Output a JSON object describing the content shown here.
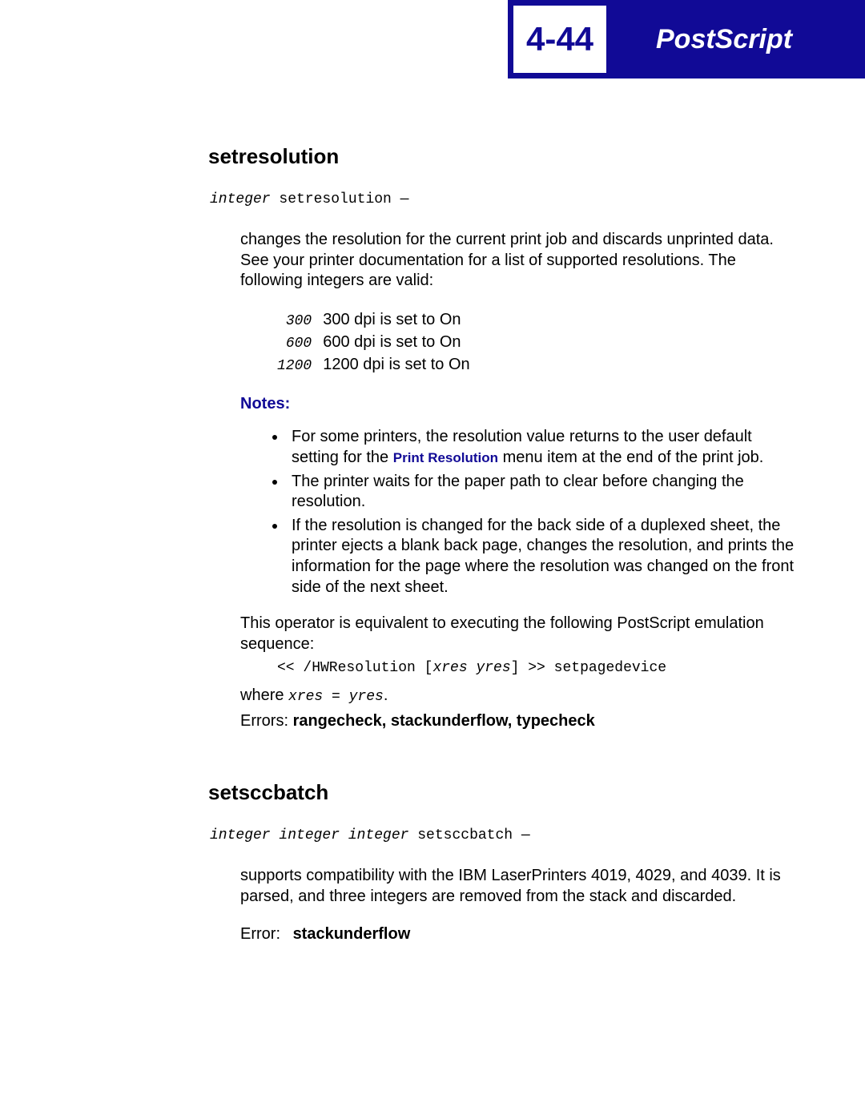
{
  "header": {
    "page_number": "4-44",
    "title": "PostScript",
    "colors": {
      "bg": "#110a96",
      "fg": "#ffffff",
      "accent": "#110a96"
    }
  },
  "setresolution": {
    "heading": "setresolution",
    "signature_arg": "integer",
    "signature_op": " setresolution —",
    "intro": "changes the resolution for the current print job and discards unprinted data. See your printer documentation for a list of supported resolutions. The following integers are valid:",
    "dpi": [
      {
        "value": "300",
        "desc": "300 dpi is set to On"
      },
      {
        "value": "600",
        "desc": "600 dpi is set to On"
      },
      {
        "value": "1200",
        "desc": "1200 dpi is set to On"
      }
    ],
    "notes_label": "Notes:",
    "notes": {
      "n1_pre": "For some printers, the resolution value returns to the user default setting for the ",
      "n1_menu": "Print Resolution",
      "n1_post": " menu item at the end of the print job.",
      "n2": "The printer waits for the paper path to clear before changing the resolution.",
      "n3": "If the resolution is changed for the back side of a duplexed sheet, the printer ejects a blank back page, changes the resolution, and prints the information for the page where the resolution was changed on the front side of the next sheet."
    },
    "equiv_text": "This operator is equivalent to executing the following PostScript emulation sequence:",
    "code_pre": "<< /HWResolution [",
    "code_var": "xres yres",
    "code_post": "] >> setpagedevice",
    "where_pre": "where ",
    "where_mono": "xres = yres",
    "where_post": ".",
    "errors_label": "Errors: ",
    "errors_vals": "rangecheck, stackunderflow, typecheck"
  },
  "setsccbatch": {
    "heading": "setsccbatch",
    "signature_arg": "integer integer integer",
    "signature_op": " setsccbatch —",
    "desc": "supports compatibility with the IBM LaserPrinters 4019, 4029, and 4039. It is parsed, and three integers are removed from the stack and discarded.",
    "error_label": "Error:",
    "error_vals": "stackunderflow"
  }
}
